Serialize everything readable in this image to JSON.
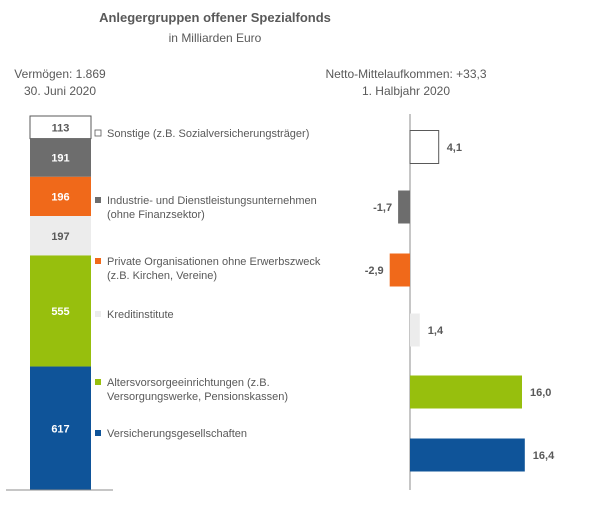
{
  "title": "Anlegergruppen offener Spezialfonds",
  "subtitle": "in Milliarden Euro",
  "left_header": {
    "line1": "Vermögen: 1.869",
    "line2": "30. Juni 2020"
  },
  "right_header": {
    "line1": "Netto-Mittelaufkommen: +33,3",
    "line2": "1. Halbjahr 2020"
  },
  "chart_data": [
    {
      "type": "bar",
      "stacked": true,
      "title": "Vermögen: 1.869",
      "subtitle": "30. Juni 2020",
      "categories": [
        "Sonstige (z.B. Sozialversicherungsträger)",
        "Industrie- und Dienstleistungsunternehmen (ohne Finanzsektor)",
        "Private Organisationen ohne Erwerbszweck (z.B. Kirchen, Vereine)",
        "Kreditinstitute",
        "Altersvorsorgeeinrichtungen (z.B. Versorgungswerke, Pensionskassen)",
        "Versicherungsgesellschaften"
      ],
      "values": [
        113,
        191,
        196,
        197,
        555,
        617
      ],
      "value_labels": [
        "113",
        "191",
        "196",
        "197",
        "555",
        "617"
      ]
    },
    {
      "type": "bar",
      "orientation": "horizontal",
      "title": "Netto-Mittelaufkommen: +33,3",
      "subtitle": "1. Halbjahr 2020",
      "categories": [
        "Sonstige (z.B. Sozialversicherungsträger)",
        "Industrie- und Dienstleistungsunternehmen (ohne Finanzsektor)",
        "Private Organisationen ohne Erwerbszweck (z.B. Kirchen, Vereine)",
        "Kreditinstitute",
        "Altersvorsorgeeinrichtungen (z.B. Versorgungswerke, Pensionskassen)",
        "Versicherungsgesellschaften"
      ],
      "values": [
        4.1,
        -1.7,
        -2.9,
        1.4,
        16.0,
        16.4
      ],
      "value_labels": [
        "4,1",
        "-1,7",
        "-2,9",
        "1,4",
        "16,0",
        "16,4"
      ]
    }
  ],
  "legend": [
    {
      "lines": [
        "Sonstige (z.B. Sozialversicherungsträger)"
      ],
      "color": "#ffffff"
    },
    {
      "lines": [
        "Industrie- und Dienstleistungsunternehmen",
        "(ohne Finanzsektor)"
      ],
      "color": "#6d6d6d"
    },
    {
      "lines": [
        "Private Organisationen ohne Erwerbszweck",
        "(z.B. Kirchen, Vereine)"
      ],
      "color": "#f0691a"
    },
    {
      "lines": [
        "Kreditinstitute"
      ],
      "color": "#ececec"
    },
    {
      "lines": [
        "Altersvorsorgeeinrichtungen (z.B.",
        "Versorgungswerke, Pensionskassen)"
      ],
      "color": "#97bf0d"
    },
    {
      "lines": [
        "Versicherungsgesellschaften"
      ],
      "color": "#0f5499"
    }
  ],
  "colors": {
    "text": "#595959",
    "border": "#595959",
    "light_label": "#595959",
    "dark_label": "#ffffff"
  }
}
